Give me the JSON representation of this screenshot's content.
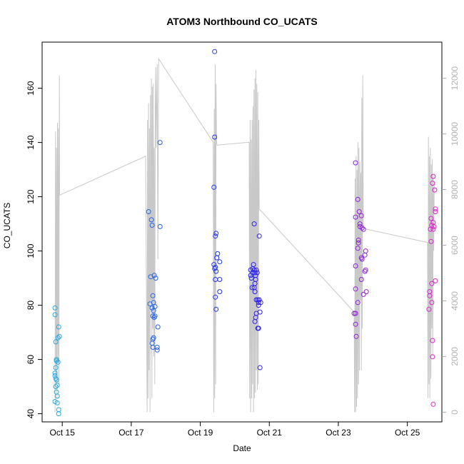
{
  "chart_data": {
    "type": "scatter",
    "title": "ATOM3 Northbound CO_UCATS",
    "xlabel": "Date",
    "ylabel": "CO_UCATS",
    "x_ticks": [
      "Oct 15",
      "Oct 17",
      "Oct 19",
      "Oct 21",
      "Oct 23",
      "Oct 25"
    ],
    "x_range": [
      "Oct 14 10:00",
      "Oct 26 00:00"
    ],
    "y_ticks": [
      40,
      60,
      80,
      100,
      120,
      140,
      160
    ],
    "ylim": [
      37,
      177
    ],
    "y2_ticks": [
      0,
      2000,
      4000,
      6000,
      8000,
      10000,
      12000
    ],
    "y2lim": [
      -350,
      13300
    ],
    "grid": false,
    "colors": {
      "altitude_line": "#c8c8c8",
      "points_start": "#29aae1",
      "points_mid": "#2222ee",
      "points_end": "#dd22cc"
    },
    "series": [
      {
        "axis": "left",
        "points": [
          [
            "Oct 14 19:00",
            79
          ],
          [
            "Oct 14 19:00",
            76.5
          ],
          [
            "Oct 14 19:30",
            66.5
          ],
          [
            "Oct 14 20:00",
            60
          ],
          [
            "Oct 14 20:00",
            59.5
          ],
          [
            "Oct 14 19:30",
            57
          ],
          [
            "Oct 14 19:00",
            55
          ],
          [
            "Oct 14 19:00",
            54
          ],
          [
            "Oct 14 19:30",
            53
          ],
          [
            "Oct 14 20:00",
            52.5
          ],
          [
            "Oct 14 19:30",
            50
          ],
          [
            "Oct 14 20:30",
            50.5
          ],
          [
            "Oct 14 20:00",
            48
          ],
          [
            "Oct 14 20:30",
            46.5
          ],
          [
            "Oct 14 19:00",
            44.5
          ],
          [
            "Oct 14 20:30",
            44
          ],
          [
            "Oct 14 21:00",
            59
          ],
          [
            "Oct 14 21:00",
            68
          ],
          [
            "Oct 14 22:00",
            68.5
          ],
          [
            "Oct 14 21:30",
            72
          ],
          [
            "Oct 14 21:30",
            41.5
          ],
          [
            "Oct 14 21:30",
            40
          ],
          [
            "Oct 17 12:00",
            114.5
          ],
          [
            "Oct 17 14:00",
            111.5
          ],
          [
            "Oct 17 14:30",
            109.5
          ],
          [
            "Oct 17 13:30",
            90.5
          ],
          [
            "Oct 17 16:00",
            91
          ],
          [
            "Oct 17 17:00",
            90
          ],
          [
            "Oct 17 15:00",
            83.5
          ],
          [
            "Oct 17 15:30",
            81
          ],
          [
            "Oct 17 13:00",
            80.5
          ],
          [
            "Oct 17 14:30",
            79
          ],
          [
            "Oct 17 15:30",
            78
          ],
          [
            "Oct 17 16:30",
            79.5
          ],
          [
            "Oct 17 15:00",
            76
          ],
          [
            "Oct 17 16:00",
            75.5
          ],
          [
            "Oct 17 16:30",
            76
          ],
          [
            "Oct 17 18:30",
            72
          ],
          [
            "Oct 17 15:30",
            68
          ],
          [
            "Oct 17 15:00",
            67.5
          ],
          [
            "Oct 17 14:30",
            66
          ],
          [
            "Oct 17 15:00",
            64.5
          ],
          [
            "Oct 17 18:00",
            64.5
          ],
          [
            "Oct 17 18:00",
            63.5
          ],
          [
            "Oct 17 20:00",
            140
          ],
          [
            "Oct 17 20:00",
            109
          ],
          [
            "Oct 19 10:00",
            173.5
          ],
          [
            "Oct 19 10:00",
            142
          ],
          [
            "Oct 19 09:30",
            123.5
          ],
          [
            "Oct 19 11:00",
            106.5
          ],
          [
            "Oct 19 10:30",
            105.5
          ],
          [
            "Oct 19 12:00",
            99
          ],
          [
            "Oct 19 11:30",
            97.5
          ],
          [
            "Oct 19 13:30",
            96
          ],
          [
            "Oct 19 09:30",
            95
          ],
          [
            "Oct 19 10:30",
            94
          ],
          [
            "Oct 19 11:00",
            92.5
          ],
          [
            "Oct 19 10:00",
            93.5
          ],
          [
            "Oct 19 10:30",
            89.5
          ],
          [
            "Oct 19 13:30",
            89.5
          ],
          [
            "Oct 19 13:30",
            85
          ],
          [
            "Oct 19 10:30",
            83
          ],
          [
            "Oct 19 11:00",
            78.5
          ],
          [
            "Oct 20 11:00",
            93
          ],
          [
            "Oct 20 11:00",
            91
          ],
          [
            "Oct 20 11:30",
            90
          ],
          [
            "Oct 20 12:30",
            92
          ],
          [
            "Oct 20 12:30",
            93.5
          ],
          [
            "Oct 20 13:00",
            95
          ],
          [
            "Oct 20 13:30",
            93
          ],
          [
            "Oct 20 14:00",
            92
          ],
          [
            "Oct 20 14:30",
            91
          ],
          [
            "Oct 20 14:30",
            89.5
          ],
          [
            "Oct 20 15:00",
            93
          ],
          [
            "Oct 20 15:30",
            92
          ],
          [
            "Oct 20 14:00",
            88
          ],
          [
            "Oct 20 13:30",
            86.5
          ],
          [
            "Oct 20 12:00",
            86.5
          ],
          [
            "Oct 20 14:00",
            85
          ],
          [
            "Oct 20 13:30",
            110
          ],
          [
            "Oct 20 17:00",
            105.5
          ],
          [
            "Oct 20 15:00",
            82
          ],
          [
            "Oct 20 16:00",
            82
          ],
          [
            "Oct 20 16:30",
            81
          ],
          [
            "Oct 20 17:00",
            82
          ],
          [
            "Oct 20 18:00",
            81
          ],
          [
            "Oct 20 16:30",
            80
          ],
          [
            "Oct 20 17:30",
            77.5
          ],
          [
            "Oct 20 15:00",
            77
          ],
          [
            "Oct 20 14:30",
            75.5
          ],
          [
            "Oct 20 14:00",
            74
          ],
          [
            "Oct 20 16:00",
            71.5
          ],
          [
            "Oct 20 16:30",
            71.5
          ],
          [
            "Oct 20 17:30",
            57
          ],
          [
            "Oct 23 12:00",
            132.5
          ],
          [
            "Oct 23 12:00",
            112.5
          ],
          [
            "Oct 23 13:30",
            119
          ],
          [
            "Oct 23 14:30",
            114.5
          ],
          [
            "Oct 23 16:00",
            113
          ],
          [
            "Oct 23 15:00",
            110
          ],
          [
            "Oct 23 15:00",
            109
          ],
          [
            "Oct 23 16:30",
            108.5
          ],
          [
            "Oct 23 17:30",
            108
          ],
          [
            "Oct 23 14:00",
            104
          ],
          [
            "Oct 23 14:00",
            103
          ],
          [
            "Oct 23 13:30",
            101
          ],
          [
            "Oct 23 19:00",
            100
          ],
          [
            "Oct 23 18:30",
            98.5
          ],
          [
            "Oct 23 16:00",
            97.5
          ],
          [
            "Oct 23 16:30",
            97
          ],
          [
            "Oct 23 12:00",
            94.5
          ],
          [
            "Oct 23 19:00",
            93
          ],
          [
            "Oct 23 18:30",
            92.5
          ],
          [
            "Oct 23 16:00",
            89.5
          ],
          [
            "Oct 23 12:00",
            86
          ],
          [
            "Oct 23 19:30",
            85
          ],
          [
            "Oct 23 17:30",
            84
          ],
          [
            "Oct 23 13:30",
            81
          ],
          [
            "Oct 23 11:00",
            77
          ],
          [
            "Oct 23 12:00",
            77
          ],
          [
            "Oct 23 12:00",
            73
          ],
          [
            "Oct 23 12:30",
            68.5
          ],
          [
            "Oct 25 15:00",
            78.5
          ],
          [
            "Oct 25 16:30",
            112
          ],
          [
            "Oct 25 17:00",
            109.5
          ],
          [
            "Oct 25 16:00",
            108
          ],
          [
            "Oct 25 18:00",
            108
          ],
          [
            "Oct 25 19:30",
            115.5
          ],
          [
            "Oct 25 19:30",
            114.5
          ],
          [
            "Oct 25 18:00",
            110.5
          ],
          [
            "Oct 25 18:30",
            109
          ],
          [
            "Oct 25 16:30",
            103.5
          ],
          [
            "Oct 25 17:30",
            125
          ],
          [
            "Oct 25 18:00",
            127.5
          ],
          [
            "Oct 25 19:00",
            122.5
          ],
          [
            "Oct 25 17:00",
            88
          ],
          [
            "Oct 25 19:30",
            89
          ],
          [
            "Oct 25 15:30",
            83.5
          ],
          [
            "Oct 25 15:30",
            85
          ],
          [
            "Oct 25 17:00",
            81
          ],
          [
            "Oct 25 17:30",
            67
          ],
          [
            "Oct 25 17:30",
            61
          ],
          [
            "Oct 25 18:00",
            43.5
          ]
        ]
      },
      {
        "axis": "right",
        "type": "line",
        "points": [
          [
            "Oct 14 19:00",
            0
          ],
          [
            "Oct 14 19:20",
            10100
          ],
          [
            "Oct 14 19:40",
            1000
          ],
          [
            "Oct 14 20:00",
            9500
          ],
          [
            "Oct 14 20:20",
            500
          ],
          [
            "Oct 14 20:40",
            10400
          ],
          [
            "Oct 14 21:00",
            1800
          ],
          [
            "Oct 14 21:20",
            10200
          ],
          [
            "Oct 14 21:40",
            1000
          ],
          [
            "Oct 14 22:00",
            12100
          ],
          [
            "Oct 14 22:10",
            7800
          ],
          [
            "Oct 17 10:00",
            9200
          ],
          [
            "Oct 17 11:00",
            0
          ],
          [
            "Oct 17 11:20",
            10500
          ],
          [
            "Oct 17 11:40",
            500
          ],
          [
            "Oct 17 12:00",
            11100
          ],
          [
            "Oct 17 12:20",
            1500
          ],
          [
            "Oct 17 12:40",
            10200
          ],
          [
            "Oct 17 13:00",
            0
          ],
          [
            "Oct 17 13:20",
            11400
          ],
          [
            "Oct 17 13:40",
            4000
          ],
          [
            "Oct 17 14:00",
            12000
          ],
          [
            "Oct 17 14:20",
            500
          ],
          [
            "Oct 17 14:40",
            11700
          ],
          [
            "Oct 17 15:00",
            3000
          ],
          [
            "Oct 17 15:20",
            11800
          ],
          [
            "Oct 17 15:40",
            2000
          ],
          [
            "Oct 17 16:00",
            9500
          ],
          [
            "Oct 17 16:20",
            1000
          ],
          [
            "Oct 17 16:40",
            11000
          ],
          [
            "Oct 17 17:00",
            12400
          ],
          [
            "Oct 17 17:20",
            9500
          ],
          [
            "Oct 17 18:00",
            12500
          ],
          [
            "Oct 17 18:30",
            5500
          ],
          [
            "Oct 17 19:00",
            12700
          ],
          [
            "Oct 19 09:00",
            9700
          ],
          [
            "Oct 19 09:20",
            0
          ],
          [
            "Oct 19 09:40",
            10900
          ],
          [
            "Oct 19 10:00",
            500
          ],
          [
            "Oct 19 10:20",
            12500
          ],
          [
            "Oct 19 10:40",
            1000
          ],
          [
            "Oct 19 11:00",
            11800
          ],
          [
            "Oct 19 11:20",
            9700
          ],
          [
            "Oct 19 11:40",
            9600
          ],
          [
            "Oct 20 10:00",
            9700
          ],
          [
            "Oct 20 10:20",
            500
          ],
          [
            "Oct 20 10:40",
            10500
          ],
          [
            "Oct 20 11:00",
            0
          ],
          [
            "Oct 20 11:20",
            9800
          ],
          [
            "Oct 20 11:40",
            500
          ],
          [
            "Oct 20 12:00",
            10500
          ],
          [
            "Oct 20 12:20",
            1000
          ],
          [
            "Oct 20 12:40",
            11000
          ],
          [
            "Oct 20 13:00",
            0
          ],
          [
            "Oct 20 13:20",
            11600
          ],
          [
            "Oct 20 13:40",
            500
          ],
          [
            "Oct 20 14:00",
            12000
          ],
          [
            "Oct 20 14:20",
            700
          ],
          [
            "Oct 20 14:40",
            12300
          ],
          [
            "Oct 20 15:00",
            1500
          ],
          [
            "Oct 20 15:20",
            11800
          ],
          [
            "Oct 20 15:40",
            800
          ],
          [
            "Oct 20 16:00",
            11500
          ],
          [
            "Oct 20 16:20",
            1000
          ],
          [
            "Oct 20 16:40",
            10500
          ],
          [
            "Oct 20 17:00",
            7300
          ],
          [
            "Oct 23 11:00",
            3600
          ],
          [
            "Oct 23 11:20",
            0
          ],
          [
            "Oct 23 11:40",
            8400
          ],
          [
            "Oct 23 12:00",
            0
          ],
          [
            "Oct 23 12:20",
            9200
          ],
          [
            "Oct 23 12:40",
            200
          ],
          [
            "Oct 23 13:00",
            8700
          ],
          [
            "Oct 23 13:20",
            500
          ],
          [
            "Oct 23 13:40",
            9700
          ],
          [
            "Oct 23 14:00",
            1000
          ],
          [
            "Oct 23 14:20",
            9500
          ],
          [
            "Oct 23 14:40",
            1500
          ],
          [
            "Oct 23 15:00",
            9000
          ],
          [
            "Oct 23 15:20",
            4000
          ],
          [
            "Oct 23 15:40",
            8600
          ],
          [
            "Oct 23 16:00",
            1500
          ],
          [
            "Oct 23 16:20",
            11300
          ],
          [
            "Oct 23 16:40",
            3000
          ],
          [
            "Oct 23 17:00",
            12100
          ],
          [
            "Oct 23 17:20",
            6600
          ],
          [
            "Oct 25 14:00",
            6100
          ],
          [
            "Oct 25 14:20",
            500
          ],
          [
            "Oct 25 14:40",
            9900
          ],
          [
            "Oct 25 15:00",
            1000
          ],
          [
            "Oct 25 15:20",
            9200
          ],
          [
            "Oct 25 15:40",
            500
          ],
          [
            "Oct 25 16:00",
            9500
          ],
          [
            "Oct 25 16:20",
            1200
          ],
          [
            "Oct 25 16:40",
            8900
          ],
          [
            "Oct 25 17:00",
            3000
          ],
          [
            "Oct 25 17:20",
            9100
          ],
          [
            "Oct 25 17:40",
            2000
          ],
          [
            "Oct 25 18:00",
            8500
          ],
          [
            "Oct 25 18:20",
            5800
          ],
          [
            "Oct 25 18:40",
            8200
          ]
        ]
      }
    ]
  }
}
